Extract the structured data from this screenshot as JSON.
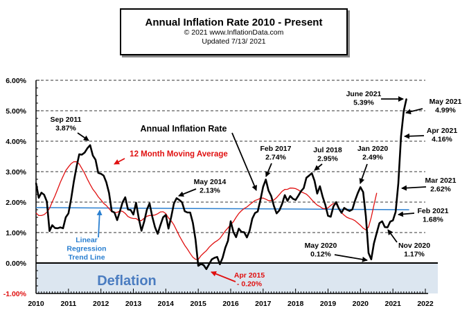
{
  "chart_data": {
    "type": "line",
    "title": "Annual  Inflation Rate 2010 - Present",
    "subtitle_lines": [
      "© 2021  www.InflationData.com",
      "Updated   7/13/ 2021"
    ],
    "xlim": [
      2010,
      2022
    ],
    "ylim": [
      -1,
      6
    ],
    "x_tick_labels": [
      "2010",
      "2011",
      "2012",
      "2013",
      "2014",
      "2015",
      "2016",
      "2017",
      "2018",
      "2019",
      "2020",
      "2021",
      "2022"
    ],
    "y_tick_labels": [
      "6.00%",
      "5.00%",
      "4.00%",
      "3.00%",
      "2.00%",
      "1.00%",
      "0.00%",
      "-1.00%"
    ],
    "grid": "horizontal dashed",
    "colors": {
      "inflation": "#000000",
      "moving_average": "#e01010",
      "trend": "#2a7fd0",
      "deflation_fill": "#dce6f0",
      "deflation_text": "#4a7cc0"
    },
    "series": [
      {
        "name": "Annual Inflation Rate",
        "start": "2010-01",
        "frequency": "monthly",
        "values": [
          2.63,
          2.14,
          2.31,
          2.24,
          2.02,
          1.05,
          1.24,
          1.15,
          1.14,
          1.17,
          1.14,
          1.5,
          1.63,
          2.11,
          2.68,
          3.16,
          3.57,
          3.56,
          3.63,
          3.77,
          3.87,
          3.53,
          3.39,
          2.96,
          2.93,
          2.87,
          2.65,
          2.3,
          1.7,
          1.66,
          1.41,
          1.69,
          1.99,
          2.16,
          1.76,
          1.74,
          1.59,
          1.98,
          1.47,
          1.06,
          1.36,
          1.75,
          1.96,
          1.52,
          1.18,
          0.96,
          1.24,
          1.5,
          1.58,
          1.13,
          1.51,
          1.95,
          2.13,
          2.07,
          1.99,
          1.7,
          1.66,
          1.66,
          1.32,
          0.76,
          -0.09,
          -0.03,
          -0.07,
          -0.2,
          -0.04,
          0.12,
          0.17,
          0.2,
          -0.04,
          0.17,
          0.5,
          0.73,
          1.37,
          1.02,
          0.85,
          1.13,
          1.02,
          1.01,
          0.84,
          1.06,
          1.46,
          1.64,
          1.69,
          2.07,
          2.5,
          2.74,
          2.38,
          2.2,
          1.87,
          1.63,
          1.73,
          1.94,
          2.23,
          2.04,
          2.2,
          2.11,
          2.07,
          2.21,
          2.36,
          2.46,
          2.8,
          2.87,
          2.95,
          2.7,
          2.28,
          2.52,
          2.18,
          1.91,
          1.55,
          1.52,
          1.86,
          2.0,
          1.79,
          1.65,
          1.81,
          1.75,
          1.71,
          1.76,
          2.05,
          2.29,
          2.49,
          2.33,
          1.54,
          0.33,
          0.12,
          0.65,
          0.99,
          1.31,
          1.37,
          1.18,
          1.17,
          1.36,
          1.4,
          1.68,
          2.62,
          4.16,
          4.99,
          5.39
        ]
      },
      {
        "name": "12 Month Moving Average",
        "derived_from": "Annual Inflation Rate",
        "window": 12
      },
      {
        "name": "Linear Regression Trend Line",
        "x": [
          2010,
          2021.5
        ],
        "values": [
          1.82,
          1.75
        ]
      }
    ],
    "annotations": [
      {
        "id": "sep2011",
        "lines": [
          "Sep 2011",
          "3.87%"
        ]
      },
      {
        "id": "air",
        "lines": [
          "Annual Inflation Rate"
        ]
      },
      {
        "id": "ma",
        "lines": [
          "12 Month Moving Average"
        ]
      },
      {
        "id": "may2014",
        "lines": [
          "May 2014",
          "2.13%"
        ]
      },
      {
        "id": "feb2017",
        "lines": [
          "Feb 2017",
          "2.74%"
        ]
      },
      {
        "id": "jul2018",
        "lines": [
          "Jul 2018",
          "2.95%"
        ]
      },
      {
        "id": "jan2020",
        "lines": [
          "Jan 2020",
          "2.49%"
        ]
      },
      {
        "id": "jun2021",
        "lines": [
          "June 2021",
          "5.39%"
        ]
      },
      {
        "id": "may2021",
        "lines": [
          "May 2021",
          "4.99%"
        ]
      },
      {
        "id": "apr2021",
        "lines": [
          "Apr 2021",
          "4.16%"
        ]
      },
      {
        "id": "mar2021",
        "lines": [
          "Mar 2021",
          "2.62%"
        ]
      },
      {
        "id": "feb2021",
        "lines": [
          "Feb 2021",
          "1.68%"
        ]
      },
      {
        "id": "may2020",
        "lines": [
          "May 2020",
          "0.12%"
        ]
      },
      {
        "id": "nov2020",
        "lines": [
          "Nov 2020",
          "1.17%"
        ]
      },
      {
        "id": "apr2015",
        "lines": [
          "Apr 2015",
          "- 0.20%"
        ]
      },
      {
        "id": "trend",
        "lines": [
          "Linear",
          "Regression",
          "Trend Line"
        ]
      },
      {
        "id": "deflation",
        "lines": [
          "Deflation"
        ]
      }
    ]
  }
}
